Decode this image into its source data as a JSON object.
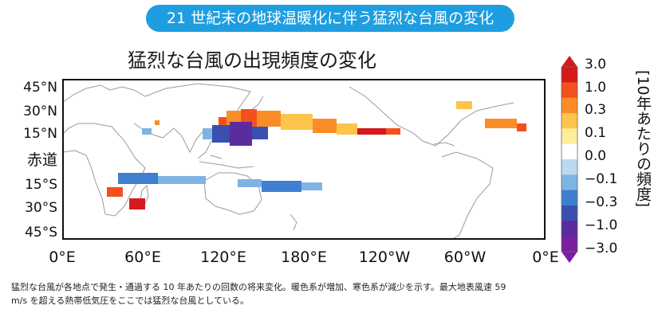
{
  "banner": {
    "text": "21 世紀末の地球温暖化に伴う猛烈な台風の変化"
  },
  "map": {
    "title": "猛烈な台風の出現頻度の変化",
    "lat_labels": [
      "45°N",
      "30°N",
      "15°N",
      "赤道",
      "15°S",
      "30°S",
      "45°S"
    ],
    "lon_labels": [
      "0°E",
      "60°E",
      "120°E",
      "180°E",
      "120°W",
      "60°W",
      "0°E"
    ]
  },
  "colorbar": {
    "title": "[10年あたりの頻度]",
    "ticks": [
      "3.0",
      "1.0",
      "0.3",
      "0.1",
      "0.0",
      "−0.1",
      "−0.3",
      "−1.0",
      "−3.0"
    ],
    "colors": [
      "#d7191c",
      "#f4501e",
      "#fb8d29",
      "#fdc44b",
      "#ffee99",
      "#ffffff",
      "#bcd9f0",
      "#7fb3e3",
      "#3e7fcf",
      "#3b4fb0",
      "#5a2ca0",
      "#7b1fa2"
    ]
  },
  "caption": {
    "line1": "猛烈な台風が各地点で発生・通過する 10 年あたりの回数の将来変化。暖色系が増加、寒色系が減少を示す。最大地表風速 59",
    "line2": "m/s を超える熱帯低気圧をここでは猛烈な台風としている。"
  }
}
